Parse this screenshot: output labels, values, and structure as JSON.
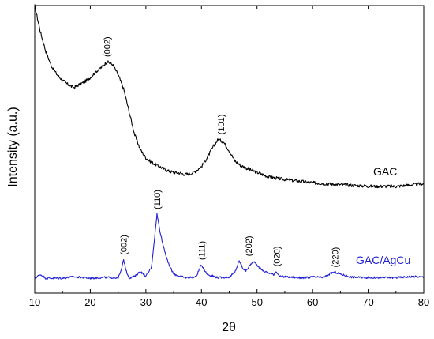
{
  "chart_data": {
    "type": "line",
    "xlabel": "2θ",
    "ylabel": "Intensity (a.u.)",
    "xlim": [
      10,
      80
    ],
    "ylim": [
      0,
      100
    ],
    "x_ticks": [
      10,
      20,
      30,
      40,
      50,
      60,
      70,
      80
    ],
    "y_ticks_shown": false,
    "grid": false,
    "series": [
      {
        "name": "GAC",
        "color": "#000000",
        "x": [
          10,
          11,
          12,
          13,
          14,
          15,
          16,
          17,
          18,
          19,
          20,
          21,
          22,
          23,
          24,
          25,
          26,
          27,
          28,
          29,
          30,
          31,
          32,
          33,
          34,
          35,
          36,
          37,
          38,
          39,
          40,
          41,
          42,
          43,
          44,
          45,
          46,
          47,
          48,
          50,
          52,
          55,
          60,
          65,
          70,
          75,
          80
        ],
        "y": [
          100,
          91,
          84,
          79,
          76,
          74,
          72.5,
          71.5,
          72.5,
          73.5,
          75,
          77,
          78.5,
          80.5,
          79.5,
          76,
          71,
          63,
          55,
          50,
          47,
          45.5,
          44.5,
          43.5,
          42.5,
          42,
          41.8,
          41.3,
          41.5,
          42.5,
          44,
          47,
          50.5,
          53.5,
          52.5,
          49.5,
          46,
          44.5,
          43.5,
          42,
          40.5,
          39.5,
          38.4,
          37.7,
          37.2,
          37.1,
          38.1
        ]
      },
      {
        "name": "GAC/AgCu",
        "color": "#1f1fd6",
        "x": [
          10,
          11,
          12,
          15,
          17,
          20,
          23,
          25,
          25.5,
          26,
          26.5,
          27,
          28,
          29,
          30,
          31,
          31.5,
          32,
          32.5,
          33,
          33.5,
          34,
          35,
          37,
          39,
          40,
          41,
          43,
          45,
          46,
          46.8,
          47.5,
          48,
          49,
          49.6,
          50.5,
          51.5,
          53,
          53.5,
          54,
          56,
          58,
          60,
          62,
          63.5,
          64,
          65,
          67,
          70,
          75,
          78,
          80
        ],
        "y": [
          5.2,
          6.5,
          5.2,
          5.2,
          5.7,
          5.2,
          5.5,
          5.3,
          7.5,
          11.6,
          7.5,
          5.3,
          5.8,
          7.6,
          5.8,
          9,
          18,
          27.5,
          22,
          17.5,
          14,
          10.5,
          6.6,
          5.4,
          5.6,
          9.9,
          6.6,
          5.4,
          5.6,
          7.2,
          11.2,
          8.5,
          7.8,
          10.4,
          10.9,
          8.6,
          7.4,
          6.5,
          7.6,
          5.8,
          5.6,
          5.3,
          5.6,
          5.5,
          7.1,
          7.3,
          6.6,
          5.6,
          5.4,
          5.4,
          5.8,
          5.6
        ]
      }
    ],
    "annotations": [
      {
        "text": "(002)",
        "x": 23,
        "y": 80.5,
        "series": "GAC"
      },
      {
        "text": "(101)",
        "x": 43.5,
        "y": 53.5,
        "series": "GAC"
      },
      {
        "text": "(002)",
        "x": 26,
        "y": 11.6,
        "series": "GAC/AgCu"
      },
      {
        "text": "(110)",
        "x": 32,
        "y": 27.5,
        "series": "GAC/AgCu"
      },
      {
        "text": "(111)",
        "x": 40,
        "y": 9.9,
        "series": "GAC/AgCu"
      },
      {
        "text": "(202)",
        "x": 48.5,
        "y": 11.2,
        "series": "GAC/AgCu"
      },
      {
        "text": "(020)",
        "x": 53.5,
        "y": 7.6,
        "series": "GAC/AgCu"
      },
      {
        "text": "(220)",
        "x": 64,
        "y": 7.3,
        "series": "GAC/AgCu"
      }
    ]
  }
}
